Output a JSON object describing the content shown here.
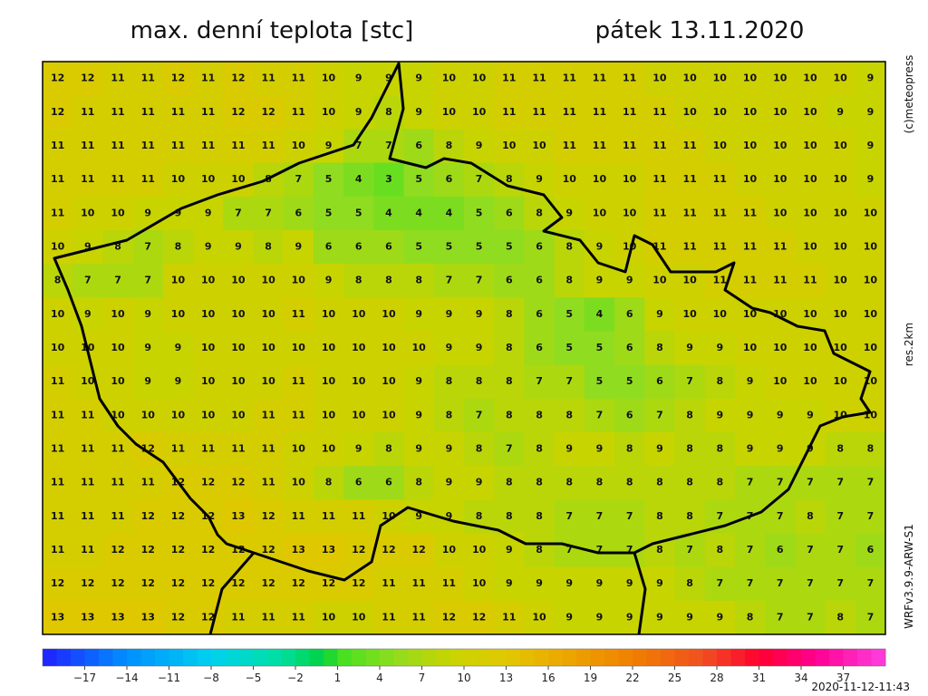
{
  "header": {
    "title": "max. denní teplota [stc]",
    "date": "pátek 13.11.2020"
  },
  "credits": {
    "copyright": "(c)meteopress",
    "resolution": "res.2km",
    "model": "WRFv3.9.9-ARW-S1",
    "timestamp": "2020-11-12-11:43"
  },
  "grid": {
    "rows": [
      [
        12,
        12,
        11,
        11,
        12,
        11,
        12,
        11,
        11,
        10,
        9,
        9,
        9,
        10,
        10,
        11,
        11,
        11,
        11,
        11,
        10,
        10,
        10,
        10,
        10,
        10,
        10,
        9
      ],
      [
        12,
        11,
        11,
        11,
        11,
        11,
        12,
        12,
        11,
        10,
        9,
        8,
        9,
        10,
        10,
        11,
        11,
        11,
        11,
        11,
        11,
        10,
        10,
        10,
        10,
        10,
        9,
        9
      ],
      [
        11,
        11,
        11,
        11,
        11,
        11,
        11,
        11,
        10,
        9,
        7,
        7,
        6,
        8,
        9,
        10,
        10,
        11,
        11,
        11,
        11,
        11,
        10,
        10,
        10,
        10,
        10,
        9
      ],
      [
        11,
        11,
        11,
        11,
        10,
        10,
        10,
        8,
        7,
        5,
        4,
        3,
        5,
        6,
        7,
        8,
        9,
        10,
        10,
        10,
        11,
        11,
        11,
        10,
        10,
        10,
        10,
        9
      ],
      [
        11,
        10,
        10,
        9,
        9,
        9,
        7,
        7,
        6,
        5,
        5,
        4,
        4,
        4,
        5,
        6,
        8,
        9,
        10,
        10,
        11,
        11,
        11,
        11,
        10,
        10,
        10,
        10
      ],
      [
        10,
        9,
        8,
        7,
        8,
        9,
        9,
        8,
        9,
        6,
        6,
        6,
        5,
        5,
        5,
        5,
        6,
        8,
        9,
        10,
        11,
        11,
        11,
        11,
        11,
        10,
        10,
        10
      ],
      [
        8,
        7,
        7,
        7,
        10,
        10,
        10,
        10,
        10,
        9,
        8,
        8,
        8,
        7,
        7,
        6,
        6,
        8,
        9,
        9,
        10,
        10,
        11,
        11,
        11,
        11,
        10,
        10
      ],
      [
        10,
        9,
        10,
        9,
        10,
        10,
        10,
        10,
        11,
        10,
        10,
        10,
        9,
        9,
        9,
        8,
        6,
        5,
        4,
        6,
        9,
        10,
        10,
        10,
        10,
        10,
        10,
        10
      ],
      [
        10,
        10,
        10,
        9,
        9,
        10,
        10,
        10,
        10,
        10,
        10,
        10,
        10,
        9,
        9,
        8,
        6,
        5,
        5,
        6,
        8,
        9,
        9,
        10,
        10,
        10,
        10,
        10
      ],
      [
        11,
        10,
        10,
        9,
        9,
        10,
        10,
        10,
        11,
        10,
        10,
        10,
        9,
        8,
        8,
        8,
        7,
        7,
        5,
        5,
        6,
        7,
        8,
        9,
        10,
        10,
        10,
        10
      ],
      [
        11,
        11,
        10,
        10,
        10,
        10,
        10,
        11,
        11,
        10,
        10,
        10,
        9,
        8,
        7,
        8,
        8,
        8,
        7,
        6,
        7,
        8,
        9,
        9,
        9,
        9,
        10,
        10
      ],
      [
        11,
        11,
        11,
        12,
        11,
        11,
        11,
        11,
        10,
        10,
        9,
        8,
        9,
        9,
        8,
        7,
        8,
        9,
        9,
        8,
        9,
        8,
        8,
        9,
        9,
        9,
        8,
        8
      ],
      [
        11,
        11,
        11,
        11,
        12,
        12,
        12,
        11,
        10,
        8,
        6,
        6,
        8,
        9,
        9,
        8,
        8,
        8,
        8,
        8,
        8,
        8,
        8,
        7,
        7,
        7,
        7,
        7
      ],
      [
        11,
        11,
        11,
        12,
        12,
        12,
        13,
        12,
        11,
        11,
        11,
        10,
        9,
        9,
        8,
        8,
        8,
        7,
        7,
        7,
        8,
        8,
        7,
        7,
        7,
        8,
        7,
        7
      ],
      [
        11,
        11,
        12,
        12,
        12,
        12,
        12,
        12,
        13,
        13,
        12,
        12,
        12,
        10,
        10,
        9,
        8,
        7,
        7,
        7,
        8,
        7,
        8,
        7,
        6,
        7,
        7,
        6
      ],
      [
        12,
        12,
        12,
        12,
        12,
        12,
        12,
        12,
        12,
        12,
        12,
        11,
        11,
        11,
        10,
        9,
        9,
        9,
        9,
        9,
        9,
        8,
        7,
        7,
        7,
        7,
        7,
        7
      ],
      [
        13,
        13,
        13,
        13,
        12,
        12,
        11,
        11,
        11,
        10,
        10,
        11,
        11,
        12,
        12,
        11,
        10,
        9,
        9,
        9,
        9,
        9,
        9,
        8,
        7,
        7,
        8,
        7
      ]
    ]
  },
  "colorbar": {
    "lim": [
      -20,
      40
    ],
    "ticks": [
      {
        "value": -17,
        "label": "−17"
      },
      {
        "value": -14,
        "label": "−14"
      },
      {
        "value": -11,
        "label": "−11"
      },
      {
        "value": -8,
        "label": "−8"
      },
      {
        "value": -5,
        "label": "−5"
      },
      {
        "value": -2,
        "label": "−2"
      },
      1,
      4,
      7,
      10,
      13,
      16,
      19,
      22,
      25,
      28,
      31,
      34,
      37
    ],
    "stops": [
      {
        "value": -20,
        "color": "#2020ff"
      },
      {
        "value": -14,
        "color": "#0090ff"
      },
      {
        "value": -8,
        "color": "#00d0f0"
      },
      {
        "value": -3,
        "color": "#00e0a0"
      },
      {
        "value": 0,
        "color": "#00d040"
      },
      {
        "value": 1,
        "color": "#40e020"
      },
      {
        "value": 5,
        "color": "#90dc20"
      },
      {
        "value": 9,
        "color": "#c8d400"
      },
      {
        "value": 13,
        "color": "#e0c800"
      },
      {
        "value": 17,
        "color": "#eca800"
      },
      {
        "value": 22,
        "color": "#f08000"
      },
      {
        "value": 27,
        "color": "#f05020"
      },
      {
        "value": 31,
        "color": "#ff0030"
      },
      {
        "value": 35,
        "color": "#ff0090"
      },
      {
        "value": 40,
        "color": "#ff40e0"
      }
    ]
  }
}
